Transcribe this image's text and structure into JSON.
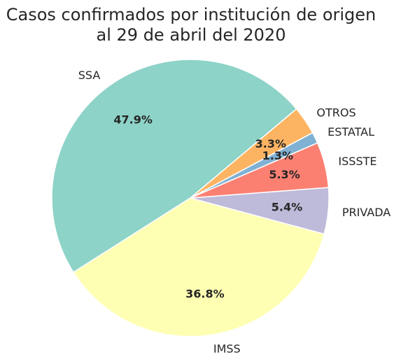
{
  "chart_data": {
    "type": "pie",
    "title": [
      "Casos confirmados por institución de origen",
      "al 29 de abril del 2020"
    ],
    "start_angle_deg": 40,
    "direction": "counterclockwise",
    "slices": [
      {
        "label": "SSA",
        "value": 47.9,
        "pct_label": "47.9%",
        "color": "#8dd3c7"
      },
      {
        "label": "IMSS",
        "value": 36.8,
        "pct_label": "36.8%",
        "color": "#ffffb3"
      },
      {
        "label": "PRIVADA",
        "value": 5.4,
        "pct_label": "5.4%",
        "color": "#bebada"
      },
      {
        "label": "ISSSTE",
        "value": 5.3,
        "pct_label": "5.3%",
        "color": "#fb8072"
      },
      {
        "label": "ESTATAL",
        "value": 1.3,
        "pct_label": "1.3%",
        "color": "#80b1d3"
      },
      {
        "label": "OTROS",
        "value": 3.3,
        "pct_label": "3.3%",
        "color": "#fdb462"
      }
    ]
  }
}
